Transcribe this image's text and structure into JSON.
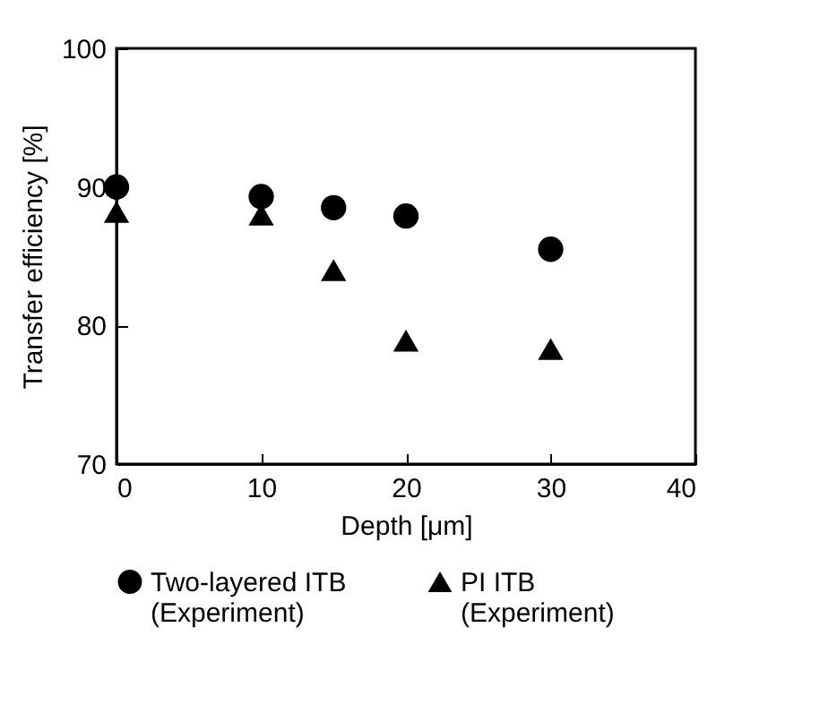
{
  "chart_data": {
    "type": "scatter",
    "xlabel": "Depth [μm]",
    "ylabel": "Transfer efficiency [%]",
    "x": [
      0,
      10,
      15,
      20,
      30
    ],
    "series": [
      {
        "name": "Two-layered  ITB\n(Experiment)",
        "color": "#000000",
        "marker": "circle",
        "values": [
          90,
          89.3,
          88.5,
          87.9,
          85.5
        ]
      },
      {
        "name": "PI ITB\n(Experiment)",
        "color": "#000000",
        "marker": "triangle",
        "values": [
          88.2,
          88.0,
          84.0,
          78.9,
          78.3
        ]
      }
    ],
    "xlim": [
      0,
      40
    ],
    "xticks": [
      0,
      10,
      20,
      30,
      40
    ],
    "ylim": [
      70,
      100
    ],
    "yticks": [
      70,
      80,
      90,
      100
    ],
    "grid": false,
    "legend": "bottom"
  }
}
